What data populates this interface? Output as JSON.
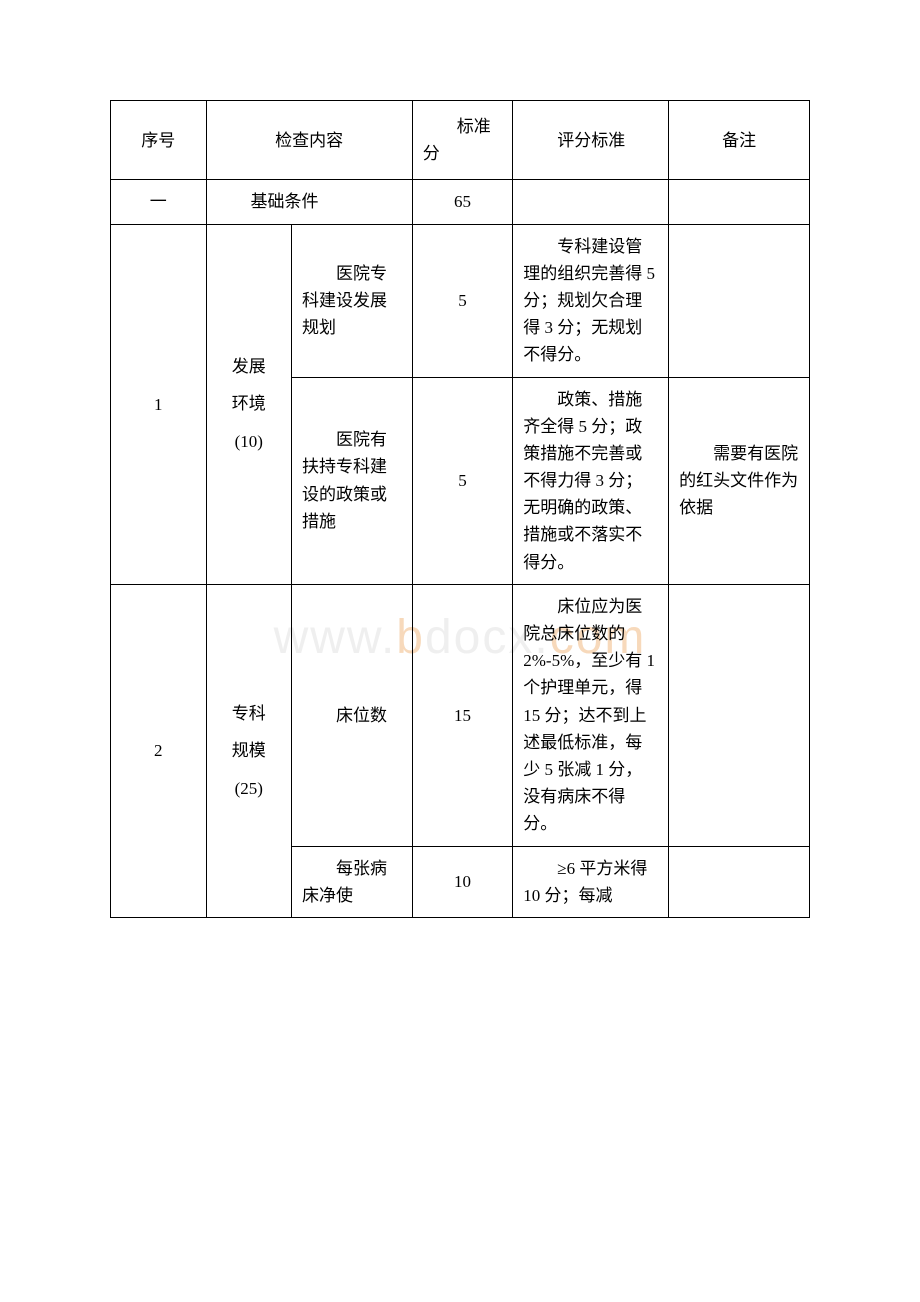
{
  "watermark": "www.bdocx.com",
  "header": {
    "seq": "序号",
    "content": "检查内容",
    "score": "标准分",
    "criteria": "评分标准",
    "remark": "备注"
  },
  "section": {
    "num": "一",
    "title": "基础条件",
    "score": "65"
  },
  "rows": [
    {
      "seq": "1",
      "category": "发展\n环境\n(10)",
      "items": [
        {
          "name": "医院专科建设发展规划",
          "score": "5",
          "criteria": "专科建设管理的组织完善得 5 分；规划欠合理得 3 分；无规划不得分。",
          "remark": ""
        },
        {
          "name": "医院有扶持专科建设的政策或措施",
          "score": "5",
          "criteria": "政策、措施齐全得 5 分；政策措施不完善或不得力得 3 分；无明确的政策、措施或不落实不得分。",
          "remark": "需要有医院的红头文件作为依据"
        }
      ]
    },
    {
      "seq": "2",
      "category": "专科\n规模\n(25)",
      "items": [
        {
          "name": "床位数",
          "score": "15",
          "criteria": "床位应为医院总床位数的 2%-5%，至少有 1 个护理单元，得 15 分；达不到上述最低标准，每少 5 张减 1 分，没有病床不得分。",
          "remark": ""
        },
        {
          "name": "每张病床净使",
          "score": "10",
          "criteria": "≥6 平方米得 10 分；每减",
          "remark": ""
        }
      ]
    }
  ]
}
